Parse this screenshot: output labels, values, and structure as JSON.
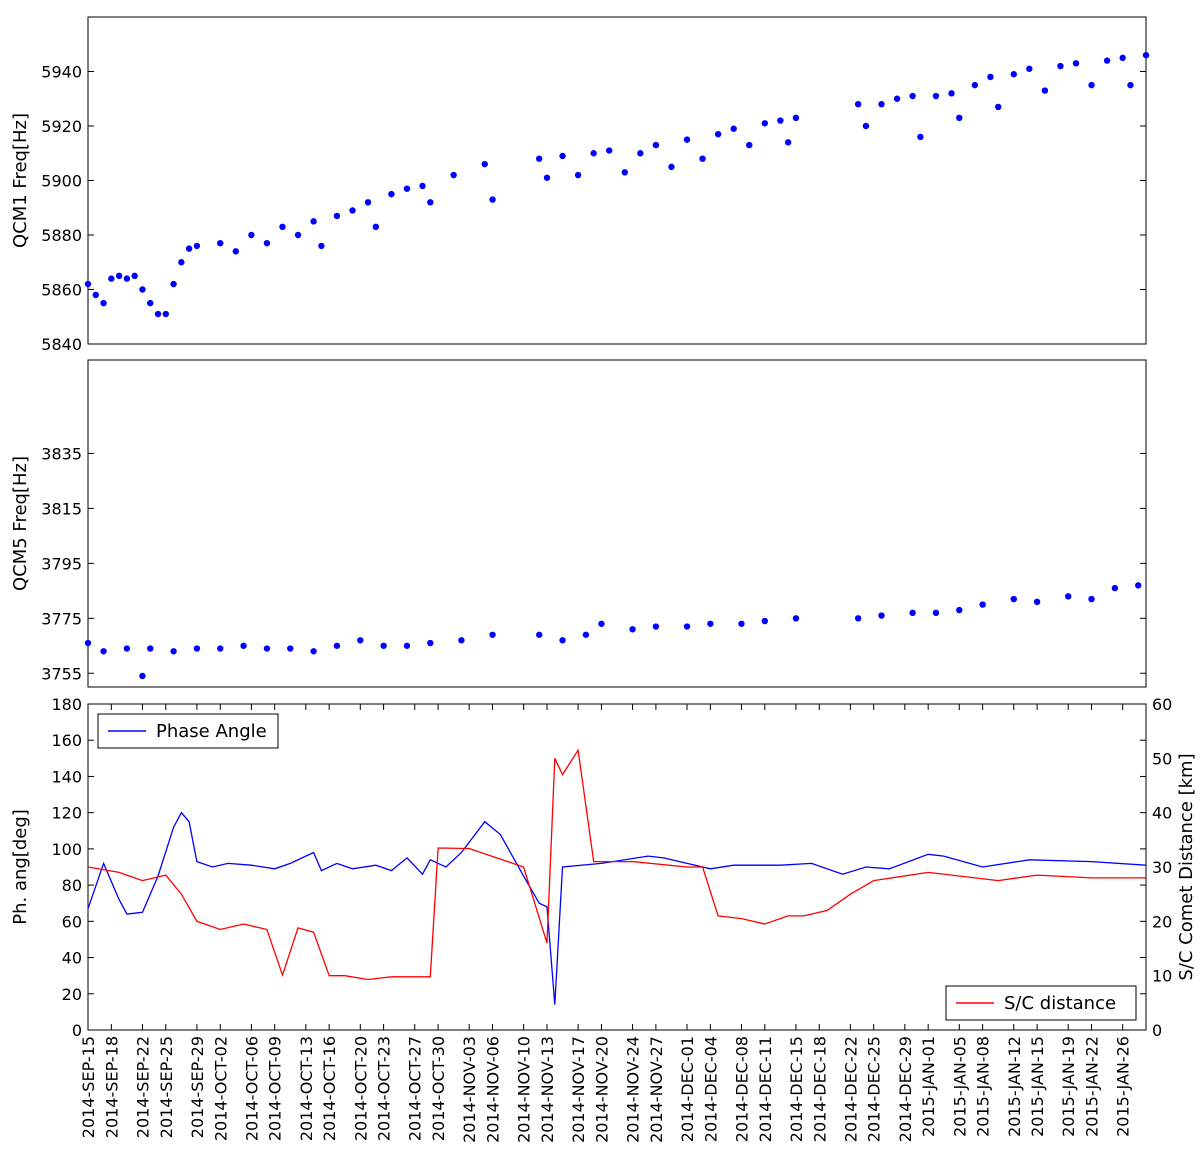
{
  "chart_data": [
    {
      "type": "scatter",
      "ylabel": "QCM1 Freq[Hz]",
      "color": "#0000ff",
      "xlim": [
        "2014-09-15",
        "2015-01-29"
      ],
      "ylim": [
        5840,
        5960
      ],
      "yticks": [
        5840,
        5860,
        5880,
        5900,
        5920,
        5940
      ],
      "x": [
        "2014-09-15",
        "2014-09-16",
        "2014-09-17",
        "2014-09-18",
        "2014-09-19",
        "2014-09-20",
        "2014-09-21",
        "2014-09-22",
        "2014-09-23",
        "2014-09-24",
        "2014-09-25",
        "2014-09-26",
        "2014-09-27",
        "2014-09-28",
        "2014-09-29",
        "2014-10-02",
        "2014-10-04",
        "2014-10-06",
        "2014-10-08",
        "2014-10-10",
        "2014-10-12",
        "2014-10-14",
        "2014-10-15",
        "2014-10-17",
        "2014-10-19",
        "2014-10-21",
        "2014-10-22",
        "2014-10-24",
        "2014-10-26",
        "2014-10-28",
        "2014-10-29",
        "2014-11-01",
        "2014-11-05",
        "2014-11-06",
        "2014-11-12",
        "2014-11-13",
        "2014-11-15",
        "2014-11-17",
        "2014-11-19",
        "2014-11-21",
        "2014-11-23",
        "2014-11-25",
        "2014-11-27",
        "2014-11-29",
        "2014-12-01",
        "2014-12-03",
        "2014-12-05",
        "2014-12-07",
        "2014-12-09",
        "2014-12-11",
        "2014-12-13",
        "2014-12-14",
        "2014-12-15",
        "2014-12-23",
        "2014-12-24",
        "2014-12-26",
        "2014-12-28",
        "2014-12-30",
        "2014-12-31",
        "2015-01-02",
        "2015-01-04",
        "2015-01-05",
        "2015-01-07",
        "2015-01-09",
        "2015-01-10",
        "2015-01-12",
        "2015-01-14",
        "2015-01-16",
        "2015-01-18",
        "2015-01-20",
        "2015-01-22",
        "2015-01-24",
        "2015-01-26",
        "2015-01-27",
        "2015-01-29"
      ],
      "values": [
        5862,
        5858,
        5855,
        5864,
        5865,
        5864,
        5865,
        5860,
        5855,
        5851,
        5851,
        5862,
        5870,
        5875,
        5876,
        5877,
        5874,
        5880,
        5877,
        5883,
        5880,
        5885,
        5876,
        5887,
        5889,
        5892,
        5883,
        5895,
        5897,
        5898,
        5892,
        5902,
        5906,
        5893,
        5908,
        5901,
        5909,
        5902,
        5910,
        5911,
        5903,
        5910,
        5913,
        5905,
        5915,
        5908,
        5917,
        5919,
        5913,
        5921,
        5922,
        5914,
        5923,
        5928,
        5920,
        5928,
        5930,
        5931,
        5916,
        5931,
        5932,
        5923,
        5935,
        5938,
        5927,
        5939,
        5941,
        5933,
        5942,
        5943,
        5935,
        5944,
        5945,
        5935,
        5946
      ]
    },
    {
      "type": "scatter",
      "ylabel": "QCM5 Freq[Hz]",
      "color": "#0000ff",
      "xlim": [
        "2014-09-15",
        "2015-01-29"
      ],
      "ylim": [
        3750,
        3869
      ],
      "yticks": [
        3755,
        3775,
        3795,
        3815,
        3835
      ],
      "x": [
        "2014-09-15",
        "2014-09-17",
        "2014-09-20",
        "2014-09-22",
        "2014-09-23",
        "2014-09-26",
        "2014-09-29",
        "2014-10-02",
        "2014-10-05",
        "2014-10-08",
        "2014-10-11",
        "2014-10-14",
        "2014-10-17",
        "2014-10-20",
        "2014-10-23",
        "2014-10-26",
        "2014-10-29",
        "2014-11-02",
        "2014-11-06",
        "2014-11-12",
        "2014-11-15",
        "2014-11-18",
        "2014-11-20",
        "2014-11-24",
        "2014-11-27",
        "2014-12-01",
        "2014-12-04",
        "2014-12-08",
        "2014-12-11",
        "2014-12-15",
        "2014-12-23",
        "2014-12-26",
        "2014-12-30",
        "2015-01-02",
        "2015-01-05",
        "2015-01-08",
        "2015-01-12",
        "2015-01-15",
        "2015-01-19",
        "2015-01-22",
        "2015-01-25",
        "2015-01-28"
      ],
      "values": [
        3766,
        3763,
        3764,
        3754,
        3764,
        3763,
        3764,
        3764,
        3765,
        3764,
        3764,
        3763,
        3765,
        3767,
        3765,
        3765,
        3766,
        3767,
        3769,
        3769,
        3767,
        3769,
        3773,
        3771,
        3772,
        3772,
        3773,
        3773,
        3774,
        3775,
        3775,
        3776,
        3777,
        3777,
        3778,
        3780,
        3782,
        3781,
        3783,
        3782,
        3786,
        3787
      ]
    },
    {
      "type": "line",
      "ylabel": "Ph. ang[deg]",
      "y2label": "S/C Comet Distance [km]",
      "xlim": [
        "2014-09-15",
        "2015-01-29"
      ],
      "ylim": [
        0,
        180
      ],
      "yticks": [
        0,
        20,
        40,
        60,
        80,
        100,
        120,
        140,
        160,
        180
      ],
      "y2lim": [
        0,
        60
      ],
      "y2ticks": [
        0,
        10,
        20,
        30,
        40,
        50,
        60
      ],
      "xticks": [
        {
          "value": "2014-09-15",
          "label": "2014-SEP-15"
        },
        {
          "value": "2014-09-18",
          "label": "2014-SEP-18"
        },
        {
          "value": "2014-09-22",
          "label": "2014-SEP-22"
        },
        {
          "value": "2014-09-25",
          "label": "2014-SEP-25"
        },
        {
          "value": "2014-09-29",
          "label": "2014-SEP-29"
        },
        {
          "value": "2014-10-02",
          "label": "2014-OCT-02"
        },
        {
          "value": "2014-10-06",
          "label": "2014-OCT-06"
        },
        {
          "value": "2014-10-09",
          "label": "2014-OCT-09"
        },
        {
          "value": "2014-10-13",
          "label": "2014-OCT-13"
        },
        {
          "value": "2014-10-16",
          "label": "2014-OCT-16"
        },
        {
          "value": "2014-10-20",
          "label": "2014-OCT-20"
        },
        {
          "value": "2014-10-23",
          "label": "2014-OCT-23"
        },
        {
          "value": "2014-10-27",
          "label": "2014-OCT-27"
        },
        {
          "value": "2014-10-30",
          "label": "2014-OCT-30"
        },
        {
          "value": "2014-11-03",
          "label": "2014-NOV-03"
        },
        {
          "value": "2014-11-06",
          "label": "2014-NOV-06"
        },
        {
          "value": "2014-11-10",
          "label": "2014-NOV-10"
        },
        {
          "value": "2014-11-13",
          "label": "2014-NOV-13"
        },
        {
          "value": "2014-11-17",
          "label": "2014-NOV-17"
        },
        {
          "value": "2014-11-20",
          "label": "2014-NOV-20"
        },
        {
          "value": "2014-11-24",
          "label": "2014-NOV-24"
        },
        {
          "value": "2014-11-27",
          "label": "2014-NOV-27"
        },
        {
          "value": "2014-12-01",
          "label": "2014-DEC-01"
        },
        {
          "value": "2014-12-04",
          "label": "2014-DEC-04"
        },
        {
          "value": "2014-12-08",
          "label": "2014-DEC-08"
        },
        {
          "value": "2014-12-11",
          "label": "2014-DEC-11"
        },
        {
          "value": "2014-12-15",
          "label": "2014-DEC-15"
        },
        {
          "value": "2014-12-18",
          "label": "2014-DEC-18"
        },
        {
          "value": "2014-12-22",
          "label": "2014-DEC-22"
        },
        {
          "value": "2014-12-25",
          "label": "2014-DEC-25"
        },
        {
          "value": "2014-12-29",
          "label": "2014-DEC-29"
        },
        {
          "value": "2015-01-01",
          "label": "2015-JAN-01"
        },
        {
          "value": "2015-01-05",
          "label": "2015-JAN-05"
        },
        {
          "value": "2015-01-08",
          "label": "2015-JAN-08"
        },
        {
          "value": "2015-01-12",
          "label": "2015-JAN-12"
        },
        {
          "value": "2015-01-15",
          "label": "2015-JAN-15"
        },
        {
          "value": "2015-01-19",
          "label": "2015-JAN-19"
        },
        {
          "value": "2015-01-22",
          "label": "2015-JAN-22"
        },
        {
          "value": "2015-01-26",
          "label": "2015-JAN-26"
        }
      ],
      "series": [
        {
          "name": "Phase Angle",
          "color": "#0000ff",
          "legend": "upper left",
          "x": [
            "2014-09-15",
            "2014-09-17",
            "2014-09-19",
            "2014-09-20",
            "2014-09-22",
            "2014-09-24",
            "2014-09-26",
            "2014-09-27",
            "2014-09-28",
            "2014-09-29",
            "2014-10-01",
            "2014-10-03",
            "2014-10-06",
            "2014-10-09",
            "2014-10-11",
            "2014-10-14",
            "2014-10-15",
            "2014-10-17",
            "2014-10-19",
            "2014-10-22",
            "2014-10-24",
            "2014-10-26",
            "2014-10-28",
            "2014-10-29",
            "2014-10-31",
            "2014-11-02",
            "2014-11-05",
            "2014-11-07",
            "2014-11-10",
            "2014-11-12",
            "2014-11-13",
            "2014-11-14",
            "2014-11-15",
            "2014-11-20",
            "2014-11-26",
            "2014-11-28",
            "2014-12-03",
            "2014-12-04",
            "2014-12-07",
            "2014-12-13",
            "2014-12-17",
            "2014-12-21",
            "2014-12-24",
            "2014-12-27",
            "2015-01-01",
            "2015-01-03",
            "2015-01-08",
            "2015-01-14",
            "2015-01-22",
            "2015-01-29"
          ],
          "values": [
            67,
            92,
            72,
            64,
            65,
            85,
            112,
            120,
            115,
            93,
            90,
            92,
            91,
            89,
            92,
            98,
            88,
            92,
            89,
            91,
            88,
            95,
            86,
            94,
            90,
            98,
            115,
            108,
            85,
            70,
            68,
            14,
            90,
            92,
            96,
            95,
            90,
            89,
            91,
            91,
            92,
            86,
            90,
            89,
            97,
            96,
            90,
            94,
            93,
            91
          ]
        },
        {
          "name": "S/C distance",
          "color": "#ff0000",
          "axis": "y2",
          "legend": "lower right",
          "x": [
            "2014-09-15",
            "2014-09-19",
            "2014-09-22",
            "2014-09-25",
            "2014-09-27",
            "2014-09-29",
            "2014-10-02",
            "2014-10-05",
            "2014-10-08",
            "2014-10-10",
            "2014-10-12",
            "2014-10-14",
            "2014-10-16",
            "2014-10-18",
            "2014-10-21",
            "2014-10-24",
            "2014-10-29",
            "2014-10-30",
            "2014-11-03",
            "2014-11-10",
            "2014-11-13",
            "2014-11-14",
            "2014-11-15",
            "2014-11-17",
            "2014-11-19",
            "2014-11-24",
            "2014-12-01",
            "2014-12-03",
            "2014-12-05",
            "2014-12-08",
            "2014-12-11",
            "2014-12-14",
            "2014-12-16",
            "2014-12-19",
            "2014-12-22",
            "2014-12-25",
            "2015-01-01",
            "2015-01-10",
            "2015-01-15",
            "2015-01-22",
            "2015-01-29"
          ],
          "values": [
            30,
            29,
            27.5,
            28.5,
            25,
            20,
            18.5,
            19.5,
            18.5,
            10.1,
            18.8,
            18,
            10,
            10,
            9.3,
            9.8,
            9.8,
            33.5,
            33.4,
            30,
            16,
            50,
            47,
            51.5,
            31,
            31,
            30,
            30,
            21,
            20.5,
            19.5,
            21,
            21,
            22,
            25,
            27.5,
            29,
            27.5,
            28.5,
            28,
            28
          ]
        }
      ]
    }
  ]
}
